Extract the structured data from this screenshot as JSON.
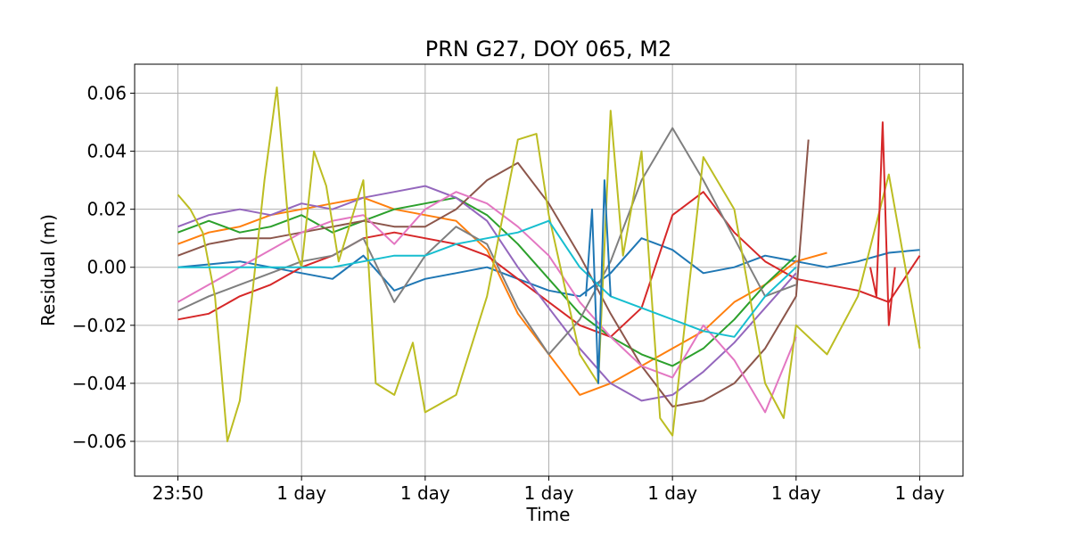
{
  "chart_data": {
    "type": "line",
    "title": "PRN G27, DOY 065, M2",
    "xlabel": "Time",
    "ylabel": "Residual (m)",
    "xlim": [
      -0.35,
      6.35
    ],
    "ylim": [
      -0.072,
      0.07
    ],
    "x_ticks": [
      0,
      1,
      2,
      3,
      4,
      5,
      6
    ],
    "x_tick_labels": [
      "23:50",
      "1 day",
      "1 day",
      "1 day",
      "1 day",
      "1 day",
      "1 day"
    ],
    "y_ticks": [
      -0.06,
      -0.04,
      -0.02,
      0.0,
      0.02,
      0.04,
      0.06
    ],
    "y_tick_labels": [
      "−0.06",
      "−0.04",
      "−0.02",
      "0.00",
      "0.02",
      "0.04",
      "0.06"
    ],
    "grid": true,
    "legend": "none",
    "series": [
      {
        "color": "#1f77b4",
        "x": [
          0,
          0.25,
          0.5,
          0.75,
          1,
          1.25,
          1.5,
          1.75,
          2,
          2.25,
          2.5,
          2.75,
          3,
          3.25,
          3.5,
          3.75,
          4,
          4.25,
          4.5,
          4.75,
          5,
          5.25,
          5.5,
          5.75,
          6
        ],
        "y": [
          0.0,
          0.001,
          0.002,
          0.0,
          -0.002,
          -0.004,
          0.004,
          -0.008,
          -0.004,
          -0.002,
          0.0,
          -0.004,
          -0.008,
          -0.01,
          -0.002,
          0.01,
          0.006,
          -0.002,
          0.0,
          0.004,
          0.002,
          0.0,
          0.002,
          0.005,
          0.006
        ]
      },
      {
        "color": "#ff7f0e",
        "x": [
          0,
          0.25,
          0.5,
          0.75,
          1,
          1.25,
          1.5,
          1.75,
          2,
          2.25,
          2.5,
          2.75,
          3,
          3.25,
          3.5,
          3.75,
          4,
          4.25,
          4.5,
          4.75,
          5,
          5.25
        ],
        "y": [
          0.008,
          0.012,
          0.014,
          0.018,
          0.02,
          0.022,
          0.024,
          0.02,
          0.018,
          0.016,
          0.006,
          -0.016,
          -0.03,
          -0.044,
          -0.04,
          -0.034,
          -0.028,
          -0.022,
          -0.012,
          -0.006,
          0.002,
          0.005
        ]
      },
      {
        "color": "#2ca02c",
        "x": [
          0,
          0.25,
          0.5,
          0.75,
          1,
          1.25,
          1.5,
          1.75,
          2,
          2.25,
          2.5,
          2.75,
          3,
          3.25,
          3.5,
          3.75,
          4,
          4.25,
          4.5,
          4.75,
          5
        ],
        "y": [
          0.012,
          0.016,
          0.012,
          0.014,
          0.018,
          0.012,
          0.016,
          0.02,
          0.022,
          0.024,
          0.018,
          0.008,
          -0.004,
          -0.016,
          -0.024,
          -0.03,
          -0.034,
          -0.028,
          -0.018,
          -0.006,
          0.004
        ]
      },
      {
        "color": "#d62728",
        "x": [
          0,
          0.25,
          0.5,
          0.75,
          1,
          1.25,
          1.5,
          1.75,
          2,
          2.25,
          2.5,
          2.75,
          3,
          3.25,
          3.5,
          3.75,
          4,
          4.25,
          4.5,
          4.75,
          5,
          5.25,
          5.5,
          5.75,
          6
        ],
        "y": [
          -0.018,
          -0.016,
          -0.01,
          -0.006,
          0.0,
          0.004,
          0.01,
          0.012,
          0.01,
          0.008,
          0.004,
          -0.004,
          -0.012,
          -0.02,
          -0.024,
          -0.014,
          0.018,
          0.026,
          0.012,
          0.002,
          -0.004,
          -0.006,
          -0.008,
          -0.012,
          0.004
        ]
      },
      {
        "color": "#9467bd",
        "x": [
          0,
          0.25,
          0.5,
          0.75,
          1,
          1.25,
          1.5,
          1.75,
          2,
          2.25,
          2.5,
          2.75,
          3,
          3.25,
          3.5,
          3.75,
          4,
          4.25,
          4.5,
          4.75,
          5
        ],
        "y": [
          0.014,
          0.018,
          0.02,
          0.018,
          0.022,
          0.02,
          0.024,
          0.026,
          0.028,
          0.024,
          0.016,
          0.0,
          -0.014,
          -0.028,
          -0.04,
          -0.046,
          -0.044,
          -0.036,
          -0.026,
          -0.014,
          -0.002
        ]
      },
      {
        "color": "#8c564b",
        "x": [
          0,
          0.25,
          0.5,
          0.75,
          1,
          1.25,
          1.5,
          1.75,
          2,
          2.25,
          2.5,
          2.75,
          3,
          3.25,
          3.5,
          3.75,
          4,
          4.25,
          4.5,
          4.75,
          5,
          5.1
        ],
        "y": [
          0.004,
          0.008,
          0.01,
          0.01,
          0.012,
          0.014,
          0.016,
          0.014,
          0.014,
          0.02,
          0.03,
          0.036,
          0.022,
          0.004,
          -0.016,
          -0.034,
          -0.048,
          -0.046,
          -0.04,
          -0.028,
          -0.01,
          0.044
        ]
      },
      {
        "color": "#e377c2",
        "x": [
          0,
          0.25,
          0.5,
          0.75,
          1,
          1.25,
          1.5,
          1.75,
          2,
          2.25,
          2.5,
          2.75,
          3,
          3.25,
          3.5,
          3.75,
          4,
          4.25,
          4.5,
          4.75,
          5
        ],
        "y": [
          -0.012,
          -0.006,
          0.0,
          0.006,
          0.012,
          0.016,
          0.018,
          0.008,
          0.02,
          0.026,
          0.022,
          0.014,
          0.004,
          -0.012,
          -0.024,
          -0.034,
          -0.038,
          -0.02,
          -0.032,
          -0.05,
          -0.024
        ]
      },
      {
        "color": "#7f7f7f",
        "x": [
          0,
          0.25,
          0.5,
          0.75,
          1,
          1.25,
          1.5,
          1.75,
          2,
          2.25,
          2.5,
          2.75,
          3,
          3.25,
          3.5,
          3.75,
          4,
          4.25,
          4.5,
          4.75,
          5
        ],
        "y": [
          -0.015,
          -0.01,
          -0.006,
          -0.002,
          0.002,
          0.004,
          0.01,
          -0.012,
          0.004,
          0.014,
          0.008,
          -0.014,
          -0.03,
          -0.018,
          0.002,
          0.03,
          0.048,
          0.03,
          0.01,
          -0.01,
          -0.006
        ]
      },
      {
        "color": "#bcbd22",
        "x": [
          0,
          0.1,
          0.2,
          0.3,
          0.4,
          0.5,
          0.6,
          0.7,
          0.8,
          0.9,
          1,
          1.1,
          1.2,
          1.3,
          1.5,
          1.6,
          1.75,
          1.9,
          2,
          2.25,
          2.5,
          2.75,
          2.9,
          3,
          3.25,
          3.4,
          3.5,
          3.6,
          3.75,
          3.9,
          4,
          4.25,
          4.5,
          4.75,
          4.9,
          5,
          5.25,
          5.5,
          5.75,
          6
        ],
        "y": [
          0.025,
          0.02,
          0.012,
          -0.01,
          -0.06,
          -0.046,
          -0.01,
          0.03,
          0.062,
          0.012,
          0.0,
          0.04,
          0.028,
          0.002,
          0.03,
          -0.04,
          -0.044,
          -0.026,
          -0.05,
          -0.044,
          -0.01,
          0.044,
          0.046,
          0.018,
          -0.03,
          -0.04,
          0.054,
          0.004,
          0.04,
          -0.052,
          -0.058,
          0.038,
          0.02,
          -0.04,
          -0.052,
          -0.02,
          -0.03,
          -0.01,
          0.032,
          -0.028
        ]
      },
      {
        "color": "#17becf",
        "x": [
          0,
          0.25,
          0.5,
          0.75,
          1,
          1.25,
          1.5,
          1.75,
          2,
          2.25,
          2.5,
          2.75,
          3,
          3.25,
          3.5,
          3.75,
          4,
          4.25,
          4.5,
          4.75,
          5
        ],
        "y": [
          0.0,
          0.0,
          0.0,
          0.0,
          0.0,
          0.0,
          0.002,
          0.004,
          0.004,
          0.008,
          0.01,
          0.012,
          0.016,
          0.0,
          -0.01,
          -0.014,
          -0.018,
          -0.022,
          -0.024,
          -0.01,
          0.0
        ]
      },
      {
        "color": "#1f77b4",
        "x": [
          3.3,
          3.35,
          3.4,
          3.45,
          3.5
        ],
        "y": [
          -0.01,
          0.02,
          -0.04,
          0.03,
          -0.01
        ]
      },
      {
        "color": "#d62728",
        "x": [
          5.6,
          5.65,
          5.7,
          5.75,
          5.8
        ],
        "y": [
          0.0,
          -0.01,
          0.05,
          -0.02,
          0.0
        ]
      }
    ]
  }
}
